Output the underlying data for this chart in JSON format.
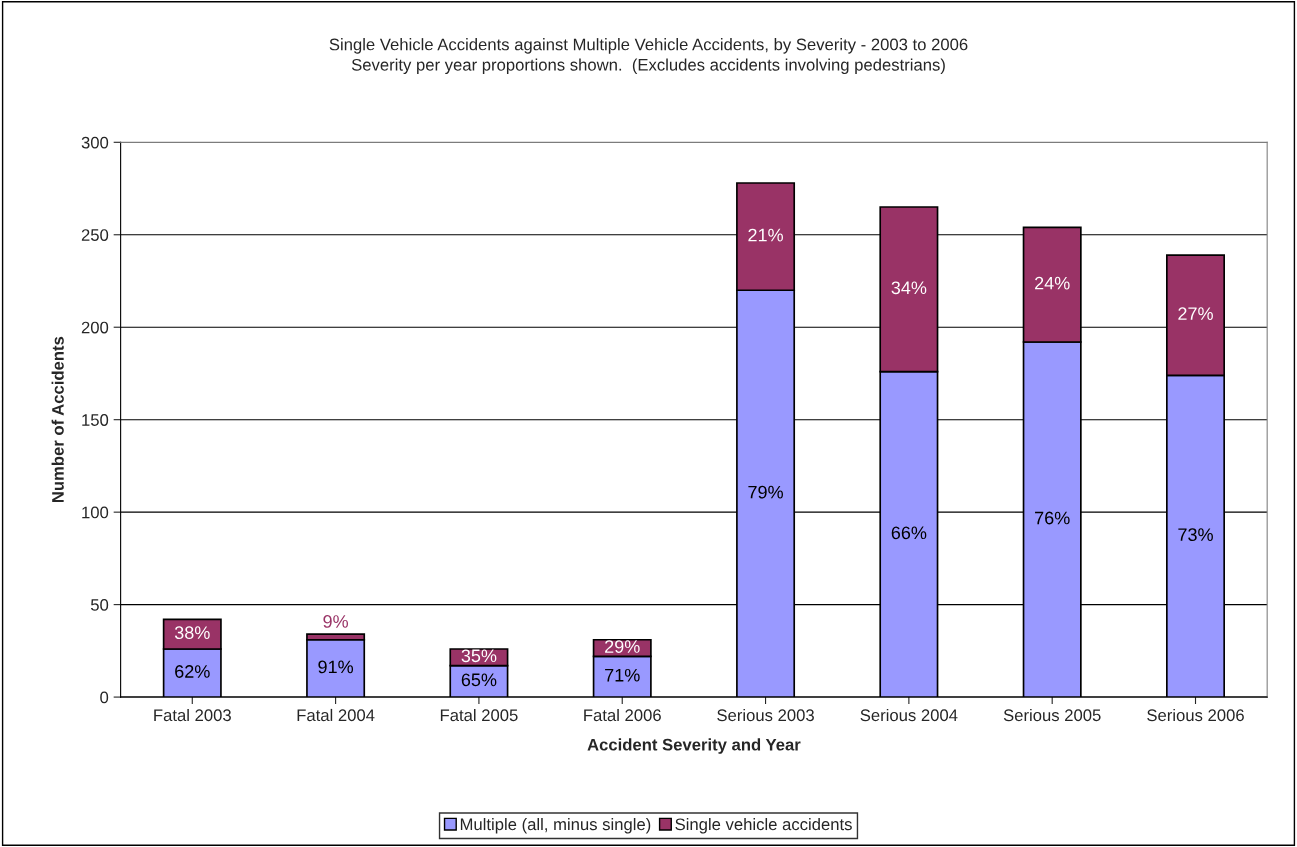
{
  "chart_data": {
    "type": "bar",
    "stacked": true,
    "title": "Single Vehicle Accidents against Multiple Vehicle Accidents, by Severity - 2003 to 2006\nSeverity per year proportions shown.  (Excludes accidents involving pedestrians)",
    "xlabel": "Accident Severity and Year",
    "ylabel": "Number of Accidents",
    "categories": [
      "Fatal 2003",
      "Fatal 2004",
      "Fatal 2005",
      "Fatal 2006",
      "Serious 2003",
      "Serious 2004",
      "Serious 2005",
      "Serious 2006"
    ],
    "series": [
      {
        "name": "Multiple (all, minus single)",
        "color": "#9999ff",
        "values": [
          26,
          31,
          17,
          22,
          220,
          176,
          192,
          174
        ]
      },
      {
        "name": "Single vehicle accidents",
        "color": "#993366",
        "values": [
          16,
          3,
          9,
          9,
          58,
          89,
          62,
          65
        ]
      }
    ],
    "annotations": [
      "62%",
      "91%",
      "65%",
      "71%",
      "79%",
      "66%",
      "76%",
      "73%",
      "38%",
      "9%",
      "35%",
      "29%",
      "21%",
      "34%",
      "24%",
      "27%"
    ],
    "ylim": [
      0,
      300
    ],
    "yticks": [
      0,
      50,
      100,
      150,
      200,
      250,
      300
    ],
    "grid": "y",
    "legend": "bottom"
  }
}
